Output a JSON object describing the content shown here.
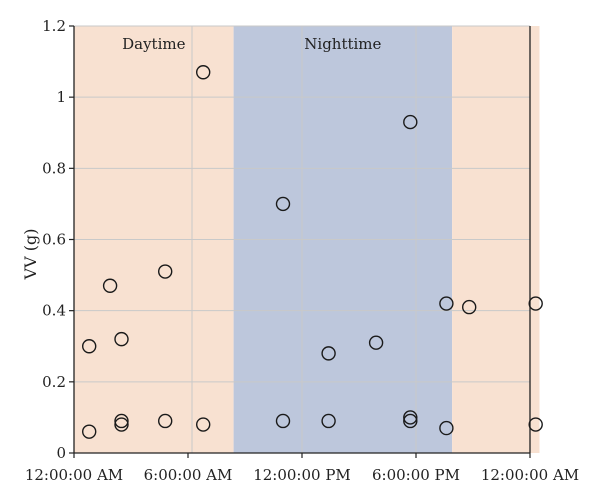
{
  "chart_data": {
    "type": "scatter",
    "ylabel": "VV (g)",
    "ylim": [
      0,
      1.2
    ],
    "y_ticks": [
      "0",
      "0.2",
      "0.4",
      "0.6",
      "0.8",
      "1",
      "1.2"
    ],
    "x_unit": "hours",
    "xlim": [
      0,
      24
    ],
    "x_ticks": [
      {
        "x": 0,
        "label": "12:00:00 AM"
      },
      {
        "x": 6,
        "label": "6:00:00 AM"
      },
      {
        "x": 12,
        "label": "12:00:00 PM"
      },
      {
        "x": 18,
        "label": "6:00:00 PM"
      },
      {
        "x": 24,
        "label": "12:00:00 AM"
      }
    ],
    "bands": [
      {
        "label": "Daytime",
        "from": -0.5,
        "to": 8.4,
        "color": "#f8e1d1"
      },
      {
        "label": "Nighttime",
        "from": 8.4,
        "to": 19.9,
        "color": "#bdc7dc"
      },
      {
        "label": "",
        "from": 19.9,
        "to": 24.5,
        "color": "#f8e1d1"
      }
    ],
    "grid": true,
    "marker": "open-circle",
    "points": [
      {
        "x": 0.8,
        "y": 0.06
      },
      {
        "x": 0.8,
        "y": 0.3
      },
      {
        "x": 1.9,
        "y": 0.47
      },
      {
        "x": 2.5,
        "y": 0.32
      },
      {
        "x": 2.5,
        "y": 0.09
      },
      {
        "x": 2.5,
        "y": 0.08
      },
      {
        "x": 4.8,
        "y": 0.51
      },
      {
        "x": 4.8,
        "y": 0.09
      },
      {
        "x": 6.8,
        "y": 1.07
      },
      {
        "x": 6.8,
        "y": 0.08
      },
      {
        "x": 11.0,
        "y": 0.7
      },
      {
        "x": 11.0,
        "y": 0.09
      },
      {
        "x": 13.4,
        "y": 0.28
      },
      {
        "x": 13.4,
        "y": 0.09
      },
      {
        "x": 15.9,
        "y": 0.31
      },
      {
        "x": 17.7,
        "y": 0.93
      },
      {
        "x": 17.7,
        "y": 0.1
      },
      {
        "x": 17.7,
        "y": 0.09
      },
      {
        "x": 19.6,
        "y": 0.42
      },
      {
        "x": 19.6,
        "y": 0.07
      },
      {
        "x": 20.8,
        "y": 0.41
      },
      {
        "x": 24.3,
        "y": 0.42
      },
      {
        "x": 24.3,
        "y": 0.08
      }
    ]
  }
}
